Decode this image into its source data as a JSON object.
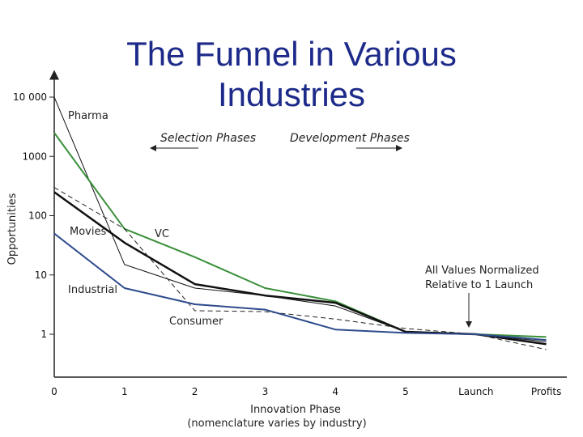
{
  "title": {
    "line1": "The Funnel in Various",
    "line2": "Industries"
  },
  "chart_data": {
    "type": "line",
    "title": "The Funnel in Various Industries",
    "xlabel": "Innovation Phase",
    "xlabel_sub": "(nomenclature varies by industry)",
    "ylabel": "Opportunities",
    "y_scale": "log",
    "ylim": [
      0.5,
      10000
    ],
    "x_categories": [
      "0",
      "1",
      "2",
      "3",
      "4",
      "5",
      "Launch",
      "Profits"
    ],
    "y_ticks": [
      {
        "value": 1,
        "label": "1"
      },
      {
        "value": 10,
        "label": "10"
      },
      {
        "value": 100,
        "label": "100"
      },
      {
        "value": 1000,
        "label": "1000"
      },
      {
        "value": 10000,
        "label": "10 000"
      }
    ],
    "grid": false,
    "series": [
      {
        "name": "Pharma",
        "color": "#111111",
        "dash": "",
        "width": 1,
        "values": [
          10000,
          15,
          6,
          4.5,
          3,
          1.1,
          1,
          0.75
        ]
      },
      {
        "name": "VC",
        "color": "#3a8f3a",
        "dash": "",
        "width": 2,
        "values": [
          2500,
          60,
          20,
          6,
          3.6,
          1.1,
          1,
          0.9
        ]
      },
      {
        "name": "Movies",
        "color": "#111111",
        "dash": "",
        "width": 2.5,
        "values": [
          250,
          35,
          7,
          4.5,
          3.4,
          1.1,
          1,
          0.68
        ]
      },
      {
        "name": "Consumer",
        "color": "#222222",
        "dash": "6,4",
        "width": 1,
        "values": [
          300,
          60,
          2.5,
          2.4,
          1.8,
          1.25,
          1,
          0.55
        ]
      },
      {
        "name": "Industrial",
        "color": "#2e4b8c",
        "dash": "",
        "width": 2,
        "values": [
          50,
          6,
          3.2,
          2.6,
          1.2,
          1.05,
          1,
          0.8
        ]
      }
    ],
    "annotations": {
      "selection": "Selection Phases",
      "development": "Development Phases",
      "normalized_line1": "All Values Normalized",
      "normalized_line2": "Relative to 1 Launch"
    }
  }
}
